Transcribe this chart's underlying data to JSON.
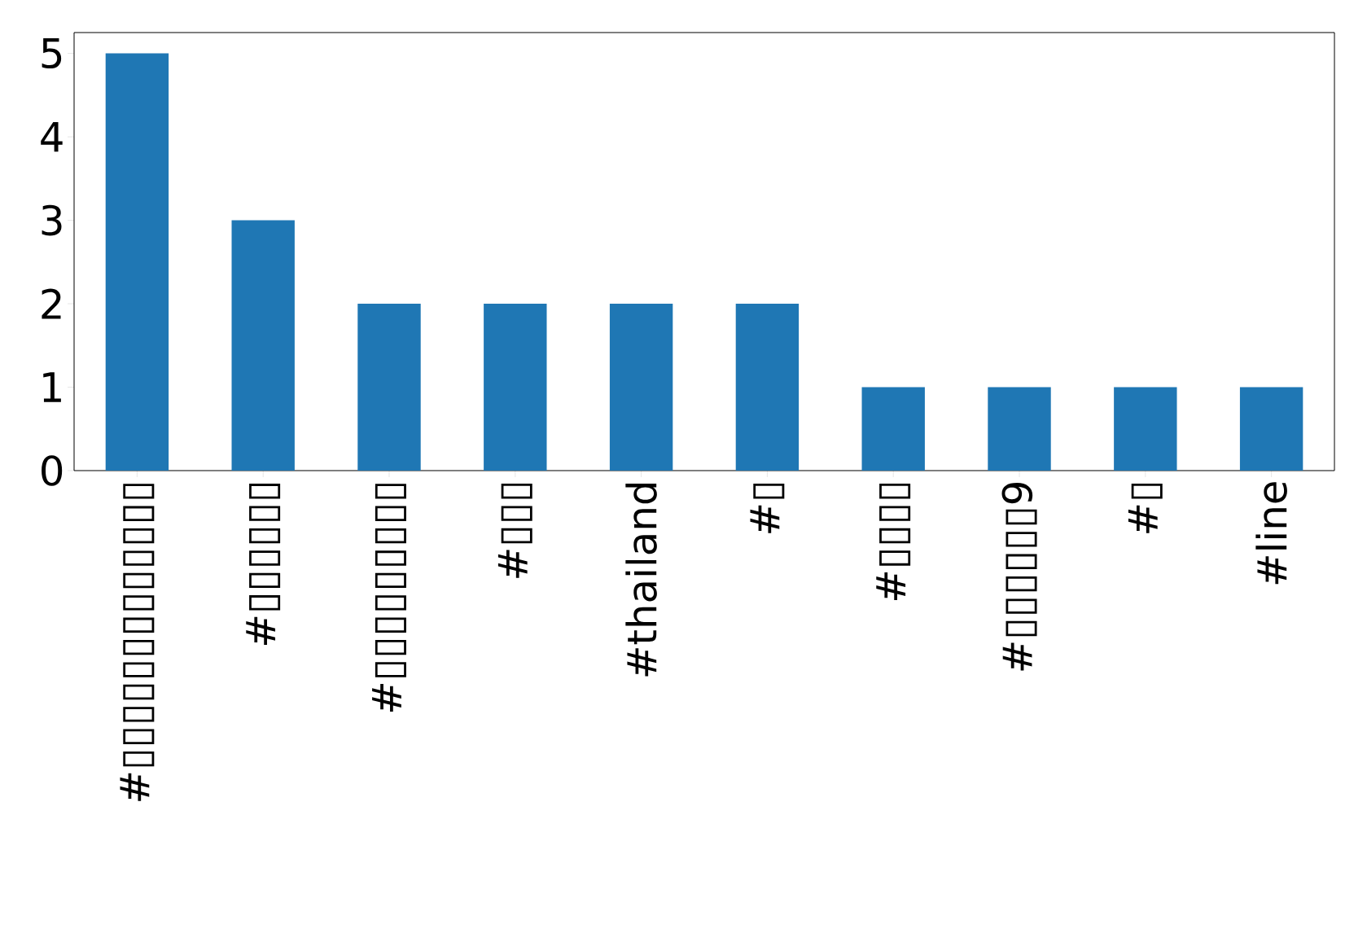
{
  "chart_data": {
    "type": "bar",
    "categories": [
      "#▯▯▯▯▯▯▯▯▯▯▯▯▯",
      "#▯▯▯▯▯▯",
      "#▯▯▯▯▯▯▯▯▯",
      "#▯▯▯",
      "#thailand",
      "#▯",
      "#▯▯▯▯",
      "#▯▯▯▯▯▯9",
      "#▯",
      "#line"
    ],
    "values": [
      5,
      3,
      2,
      2,
      2,
      2,
      1,
      1,
      1,
      1
    ],
    "color": "#1f77b4",
    "ylim": [
      0,
      5.25
    ],
    "yticks": [
      0,
      1,
      2,
      3,
      4,
      5
    ]
  }
}
